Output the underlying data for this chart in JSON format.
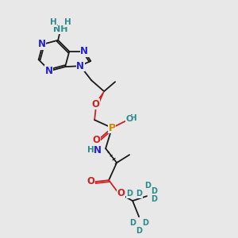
{
  "background_color": "#e8e8e8",
  "bond_color": "#1a1a1a",
  "N_color": "#2222cc",
  "O_color": "#cc2222",
  "P_color": "#cc8800",
  "D_color": "#2e8b8b",
  "H_color": "#2e8b8b",
  "figsize": [
    3.0,
    3.0
  ],
  "dpi": 100,
  "xlim": [
    0,
    300
  ],
  "ylim": [
    0,
    300
  ]
}
